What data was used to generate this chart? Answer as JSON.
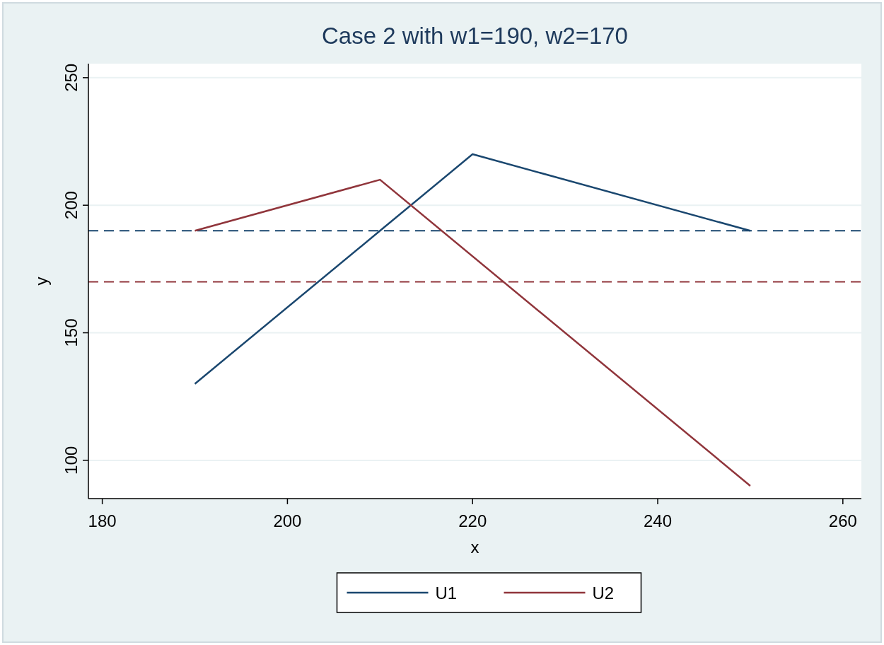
{
  "chart_data": {
    "type": "line",
    "title": "Case 2 with w1=190, w2=170",
    "xlabel": "x",
    "ylabel": "y",
    "series": [
      {
        "name": "U1",
        "color": "#1a476f",
        "x": [
          190,
          210,
          220,
          250
        ],
        "values": [
          130,
          190,
          220,
          190
        ]
      },
      {
        "name": "U2",
        "color": "#90353b",
        "x": [
          190,
          210,
          250
        ],
        "values": [
          190,
          210,
          90
        ]
      }
    ],
    "ref_lines": [
      {
        "axis": "y",
        "value": 190,
        "color": "#1a476f",
        "line_style": "dashed"
      },
      {
        "axis": "y",
        "value": 170,
        "color": "#90353b",
        "line_style": "dashed"
      }
    ],
    "xlim": [
      178.5,
      262
    ],
    "xticks": [
      180,
      200,
      220,
      240,
      260
    ],
    "ylim": [
      85,
      255.5
    ],
    "yticks": [
      100,
      150,
      200,
      250
    ],
    "grid": "y",
    "legend": "bottom",
    "marker": "none",
    "line_style": "solid"
  }
}
